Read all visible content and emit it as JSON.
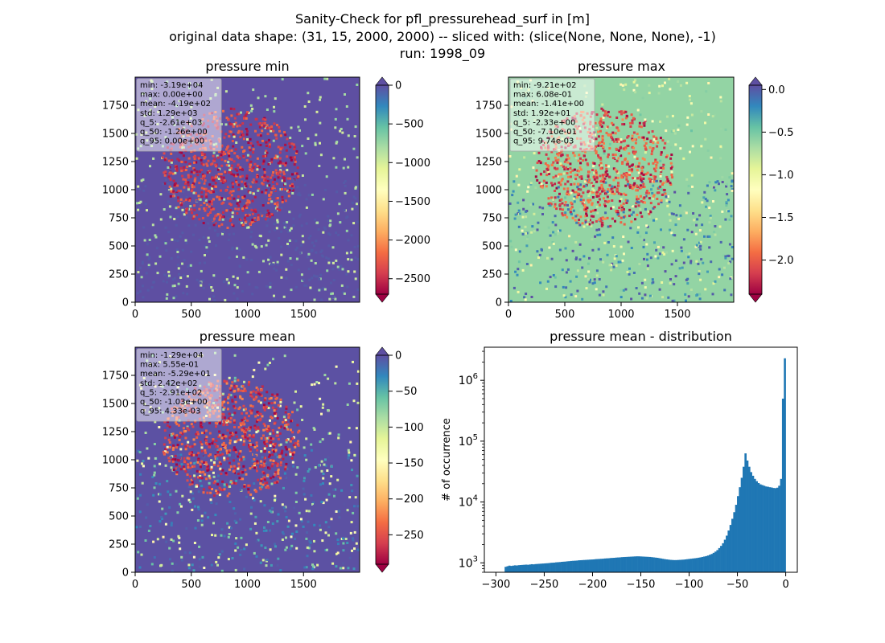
{
  "figure": {
    "suptitle_lines": [
      "Sanity-Check for pfl_pressurehead_surf in [m]",
      "original data shape: (31, 15, 2000, 2000) -- sliced with: (slice(None, None, None), -1)",
      "run: 1998_09"
    ]
  },
  "colors": {
    "hist_bar": "#1f77b4",
    "axis": "#000000",
    "stats_box_bg": "#ffffff"
  },
  "chart_data": [
    {
      "type": "heatmap",
      "title": "pressure min",
      "colormap": "Spectral",
      "xlim": [
        0,
        2000
      ],
      "ylim": [
        0,
        2000
      ],
      "x_ticks": [
        "0",
        "500",
        "1000",
        "1500"
      ],
      "y_ticks": [
        "0",
        "250",
        "500",
        "750",
        "1000",
        "1250",
        "1500",
        "1750"
      ],
      "colorbar_range": [
        -2700,
        0
      ],
      "colorbar_ticks": [
        "0",
        "−500",
        "−1000",
        "−1500",
        "−2000",
        "−2500"
      ],
      "colorbar_tick_values": [
        0,
        -500,
        -1000,
        -1500,
        -2000,
        -2500
      ],
      "colorbar_extend": "both",
      "dominant_value": 0,
      "stats": [
        "min: -3.19e+04",
        "max: 0.00e+00",
        "mean: -4.19e+02",
        "std: 1.29e+03",
        "q_5: -2.61e+03",
        "q_50: -1.26e+00",
        "q_95: 0.00e+00"
      ],
      "grid": false
    },
    {
      "type": "heatmap",
      "title": "pressure max",
      "colormap": "Spectral",
      "xlim": [
        0,
        2000
      ],
      "ylim": [
        0,
        2000
      ],
      "x_ticks": [
        "0",
        "500",
        "1000",
        "1500"
      ],
      "y_ticks": [
        "0",
        "250",
        "500",
        "750",
        "1000",
        "1250",
        "1500",
        "1750"
      ],
      "colorbar_range": [
        -2.4,
        0.05
      ],
      "colorbar_ticks": [
        "0.0",
        "−0.5",
        "−1.0",
        "−1.5",
        "−2.0"
      ],
      "colorbar_tick_values": [
        0,
        -0.5,
        -1.0,
        -1.5,
        -2.0
      ],
      "colorbar_extend": "both",
      "dominant_value": -0.6,
      "stats": [
        "min: -9.21e+02",
        "max: 6.08e-01",
        "mean: -1.41e+00",
        "std: 1.92e+01",
        "q_5: -2.33e+00",
        "q_50: -7.10e-01",
        "q_95: 9.74e-03"
      ],
      "grid": false
    },
    {
      "type": "heatmap",
      "title": "pressure mean",
      "colormap": "Spectral",
      "xlim": [
        0,
        2000
      ],
      "ylim": [
        0,
        2000
      ],
      "x_ticks": [
        "0",
        "500",
        "1000",
        "1500"
      ],
      "y_ticks": [
        "0",
        "250",
        "500",
        "750",
        "1000",
        "1250",
        "1500",
        "1750"
      ],
      "colorbar_range": [
        -291,
        0
      ],
      "colorbar_ticks": [
        "0",
        "−50",
        "−100",
        "−150",
        "−200",
        "−250"
      ],
      "colorbar_tick_values": [
        0,
        -50,
        -100,
        -150,
        -200,
        -250
      ],
      "colorbar_extend": "both",
      "dominant_value": -1,
      "stats": [
        "min: -1.29e+04",
        "max: 5.55e-01",
        "mean: -5.29e+01",
        "std: 2.42e+02",
        "q_5: -2.91e+02",
        "q_50: -1.03e+00",
        "q_95: 4.33e-03"
      ],
      "grid": false
    },
    {
      "type": "bar",
      "subtype": "histogram",
      "title": "pressure mean - distribution",
      "xlabel": "",
      "ylabel": "# of occurrence",
      "yscale": "log",
      "xlim": [
        -312,
        12
      ],
      "ylim": [
        700,
        3500000
      ],
      "x_ticks": [
        "−300",
        "−250",
        "−200",
        "−150",
        "−100",
        "−50",
        "0"
      ],
      "x_tick_values": [
        -300,
        -250,
        -200,
        -150,
        -100,
        -50,
        0
      ],
      "y_tick_values": [
        1000,
        10000,
        100000,
        1000000
      ],
      "y_tick_bases": [
        "10",
        "10",
        "10",
        "10"
      ],
      "y_tick_exponents": [
        "3",
        "4",
        "5",
        "6"
      ],
      "bin_range": [
        -291,
        0
      ],
      "bins": 150,
      "counts": [
        860,
        880,
        900,
        890,
        900,
        910,
        905,
        915,
        920,
        925,
        930,
        935,
        930,
        940,
        950,
        945,
        955,
        960,
        965,
        970,
        975,
        980,
        985,
        990,
        1000,
        1005,
        1010,
        1020,
        1025,
        1030,
        1040,
        1045,
        1050,
        1060,
        1065,
        1075,
        1080,
        1085,
        1090,
        1100,
        1105,
        1110,
        1115,
        1120,
        1125,
        1130,
        1135,
        1140,
        1150,
        1155,
        1160,
        1165,
        1170,
        1180,
        1185,
        1190,
        1200,
        1205,
        1210,
        1220,
        1225,
        1230,
        1240,
        1245,
        1250,
        1255,
        1260,
        1265,
        1270,
        1275,
        1280,
        1280,
        1275,
        1270,
        1265,
        1260,
        1255,
        1250,
        1240,
        1230,
        1220,
        1210,
        1195,
        1180,
        1165,
        1150,
        1140,
        1130,
        1120,
        1115,
        1110,
        1110,
        1115,
        1120,
        1125,
        1130,
        1140,
        1150,
        1160,
        1170,
        1180,
        1190,
        1200,
        1215,
        1230,
        1250,
        1270,
        1290,
        1320,
        1360,
        1400,
        1460,
        1530,
        1620,
        1750,
        1900,
        2100,
        2400,
        2800,
        3400,
        4200,
        5300,
        6800,
        9000,
        12500,
        17500,
        25000,
        38000,
        63000,
        48000,
        38000,
        31000,
        27000,
        24000,
        22000,
        20500,
        19500,
        19000,
        18500,
        18000,
        17800,
        17500,
        17300,
        17000,
        16900,
        17200,
        18500,
        24000,
        500000,
        2300000
      ],
      "grid": false
    }
  ]
}
